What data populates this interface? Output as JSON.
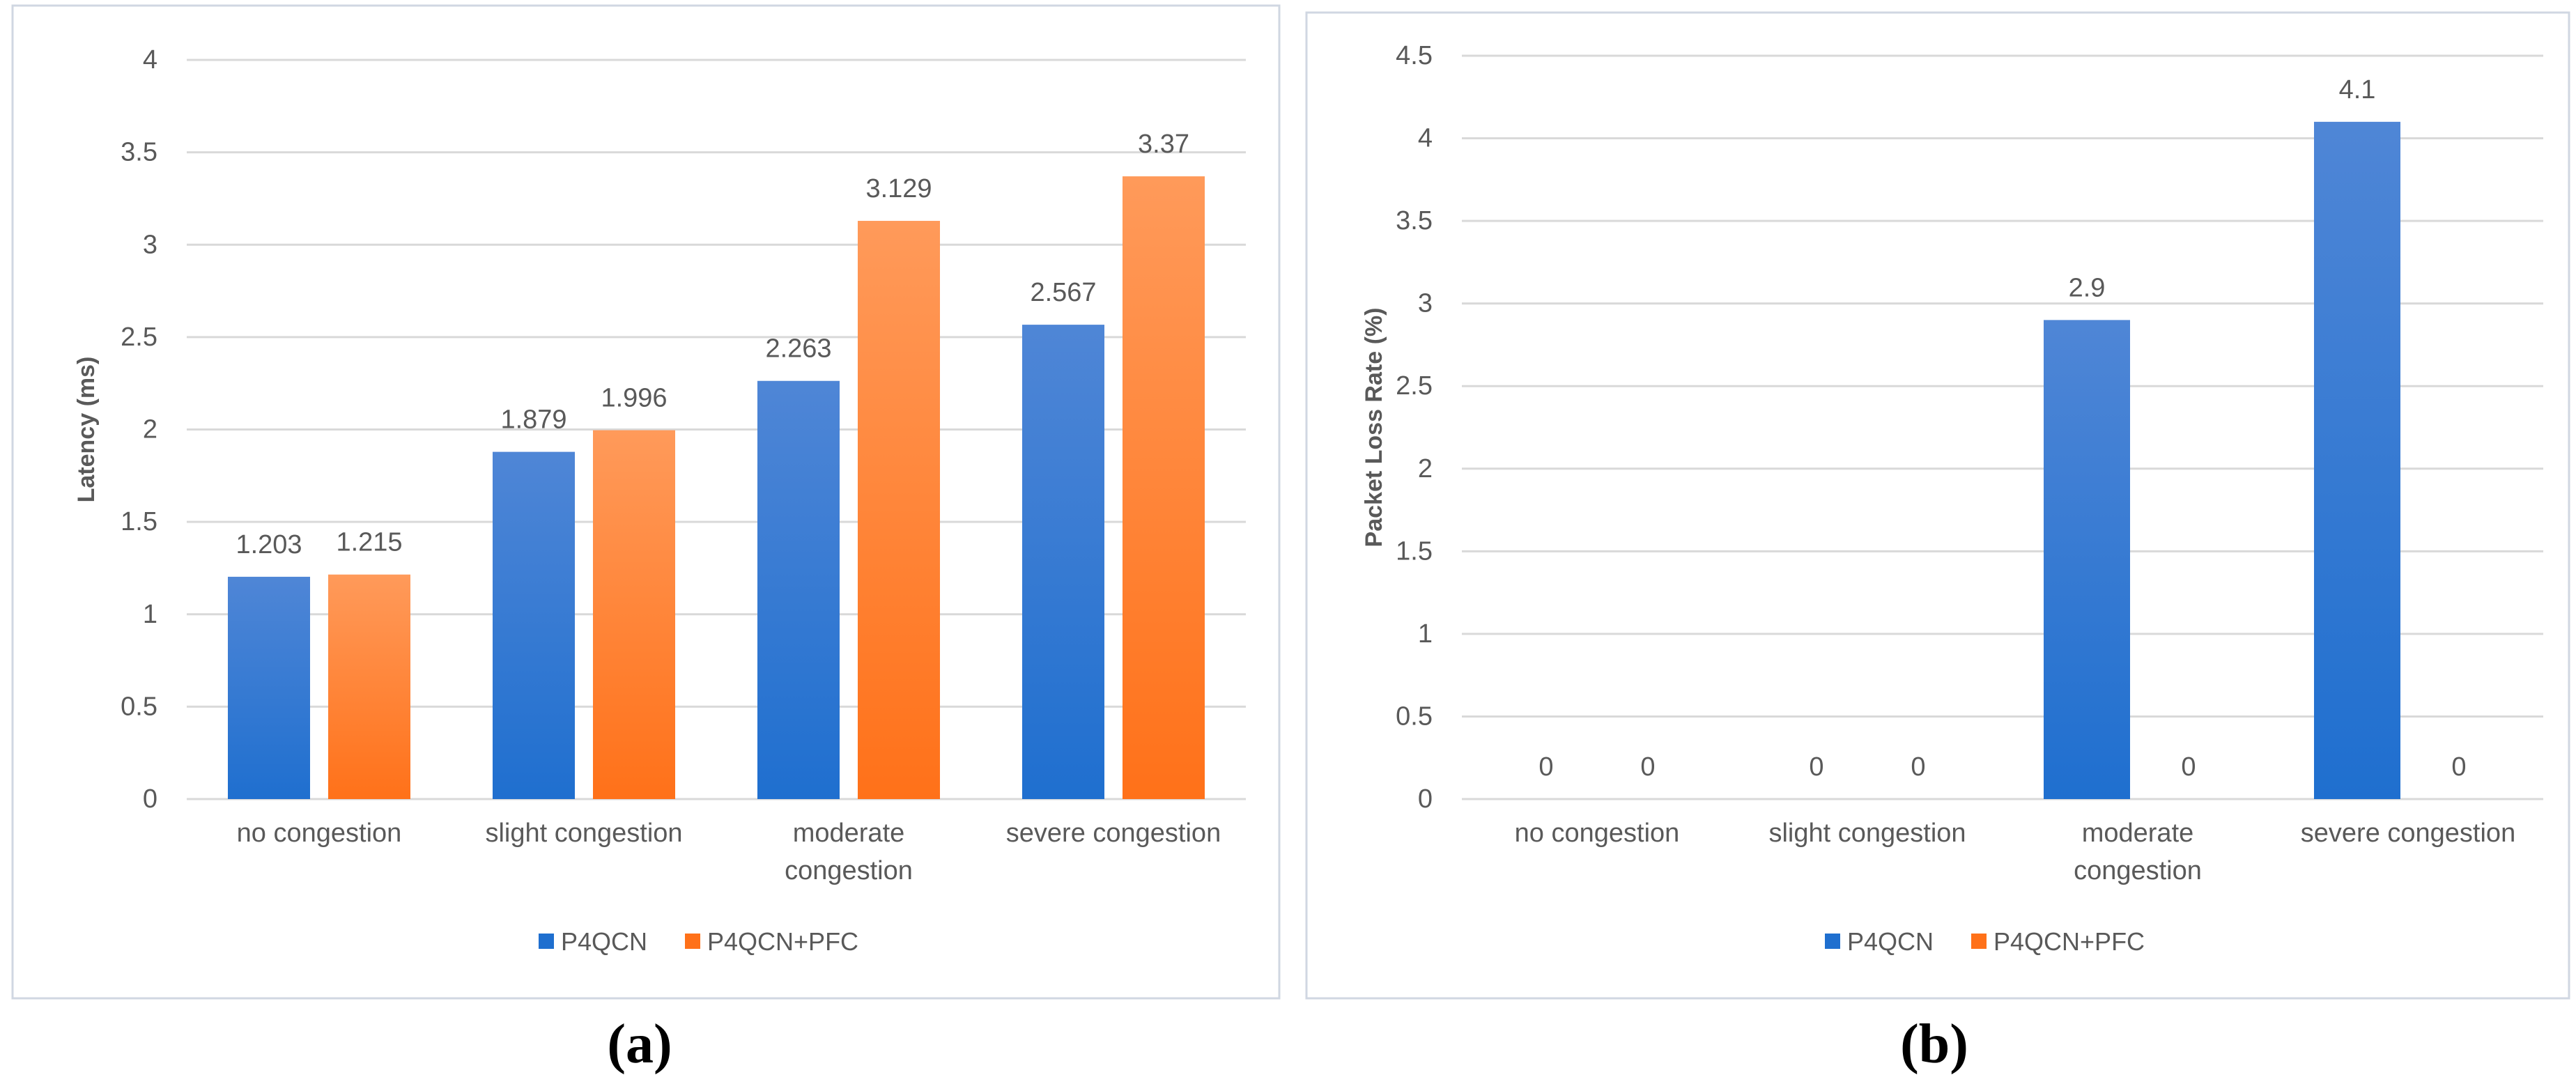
{
  "colors": {
    "series1": "#1f6fcf",
    "series1_light": "#4f86d6",
    "series2": "#ff7119",
    "series2_light": "#ff9a5a",
    "grid": "#d9d9d9",
    "text": "#595959",
    "border": "#d0d7e2"
  },
  "chart_data": [
    {
      "type": "bar",
      "panel_label": "(a)",
      "title": "",
      "xlabel": "",
      "ylabel": "Latency (ms)",
      "ylim": [
        0,
        4
      ],
      "yticks": [
        "0",
        "0.5",
        "1",
        "1.5",
        "2",
        "2.5",
        "3",
        "3.5",
        "4"
      ],
      "categories": [
        [
          "no congestion"
        ],
        [
          "slight congestion"
        ],
        [
          "moderate",
          "congestion"
        ],
        [
          "severe congestion"
        ]
      ],
      "series": [
        {
          "name": "P4QCN",
          "values": [
            1.203,
            1.879,
            2.263,
            2.567
          ],
          "labels": [
            "1.203",
            "1.879",
            "2.263",
            "2.567"
          ]
        },
        {
          "name": "P4QCN+PFC",
          "values": [
            1.215,
            1.996,
            3.129,
            3.37
          ],
          "labels": [
            "1.215",
            "1.996",
            "3.129",
            "3.37"
          ]
        }
      ],
      "legend": "bottom",
      "grid": true
    },
    {
      "type": "bar",
      "panel_label": "(b)",
      "title": "",
      "xlabel": "",
      "ylabel": "Packet Loss Rate (%)",
      "ylim": [
        0,
        4.5
      ],
      "yticks": [
        "0",
        "0.5",
        "1",
        "1.5",
        "2",
        "2.5",
        "3",
        "3.5",
        "4",
        "4.5"
      ],
      "categories": [
        [
          "no congestion"
        ],
        [
          "slight congestion"
        ],
        [
          "moderate",
          "congestion"
        ],
        [
          "severe congestion"
        ]
      ],
      "series": [
        {
          "name": "P4QCN",
          "values": [
            0,
            0,
            2.9,
            4.1
          ],
          "labels": [
            "0",
            "0",
            "2.9",
            "4.1"
          ]
        },
        {
          "name": "P4QCN+PFC",
          "values": [
            0,
            0,
            0,
            0
          ],
          "labels": [
            "0",
            "0",
            "0",
            "0"
          ]
        }
      ],
      "legend": "bottom",
      "grid": true
    }
  ]
}
